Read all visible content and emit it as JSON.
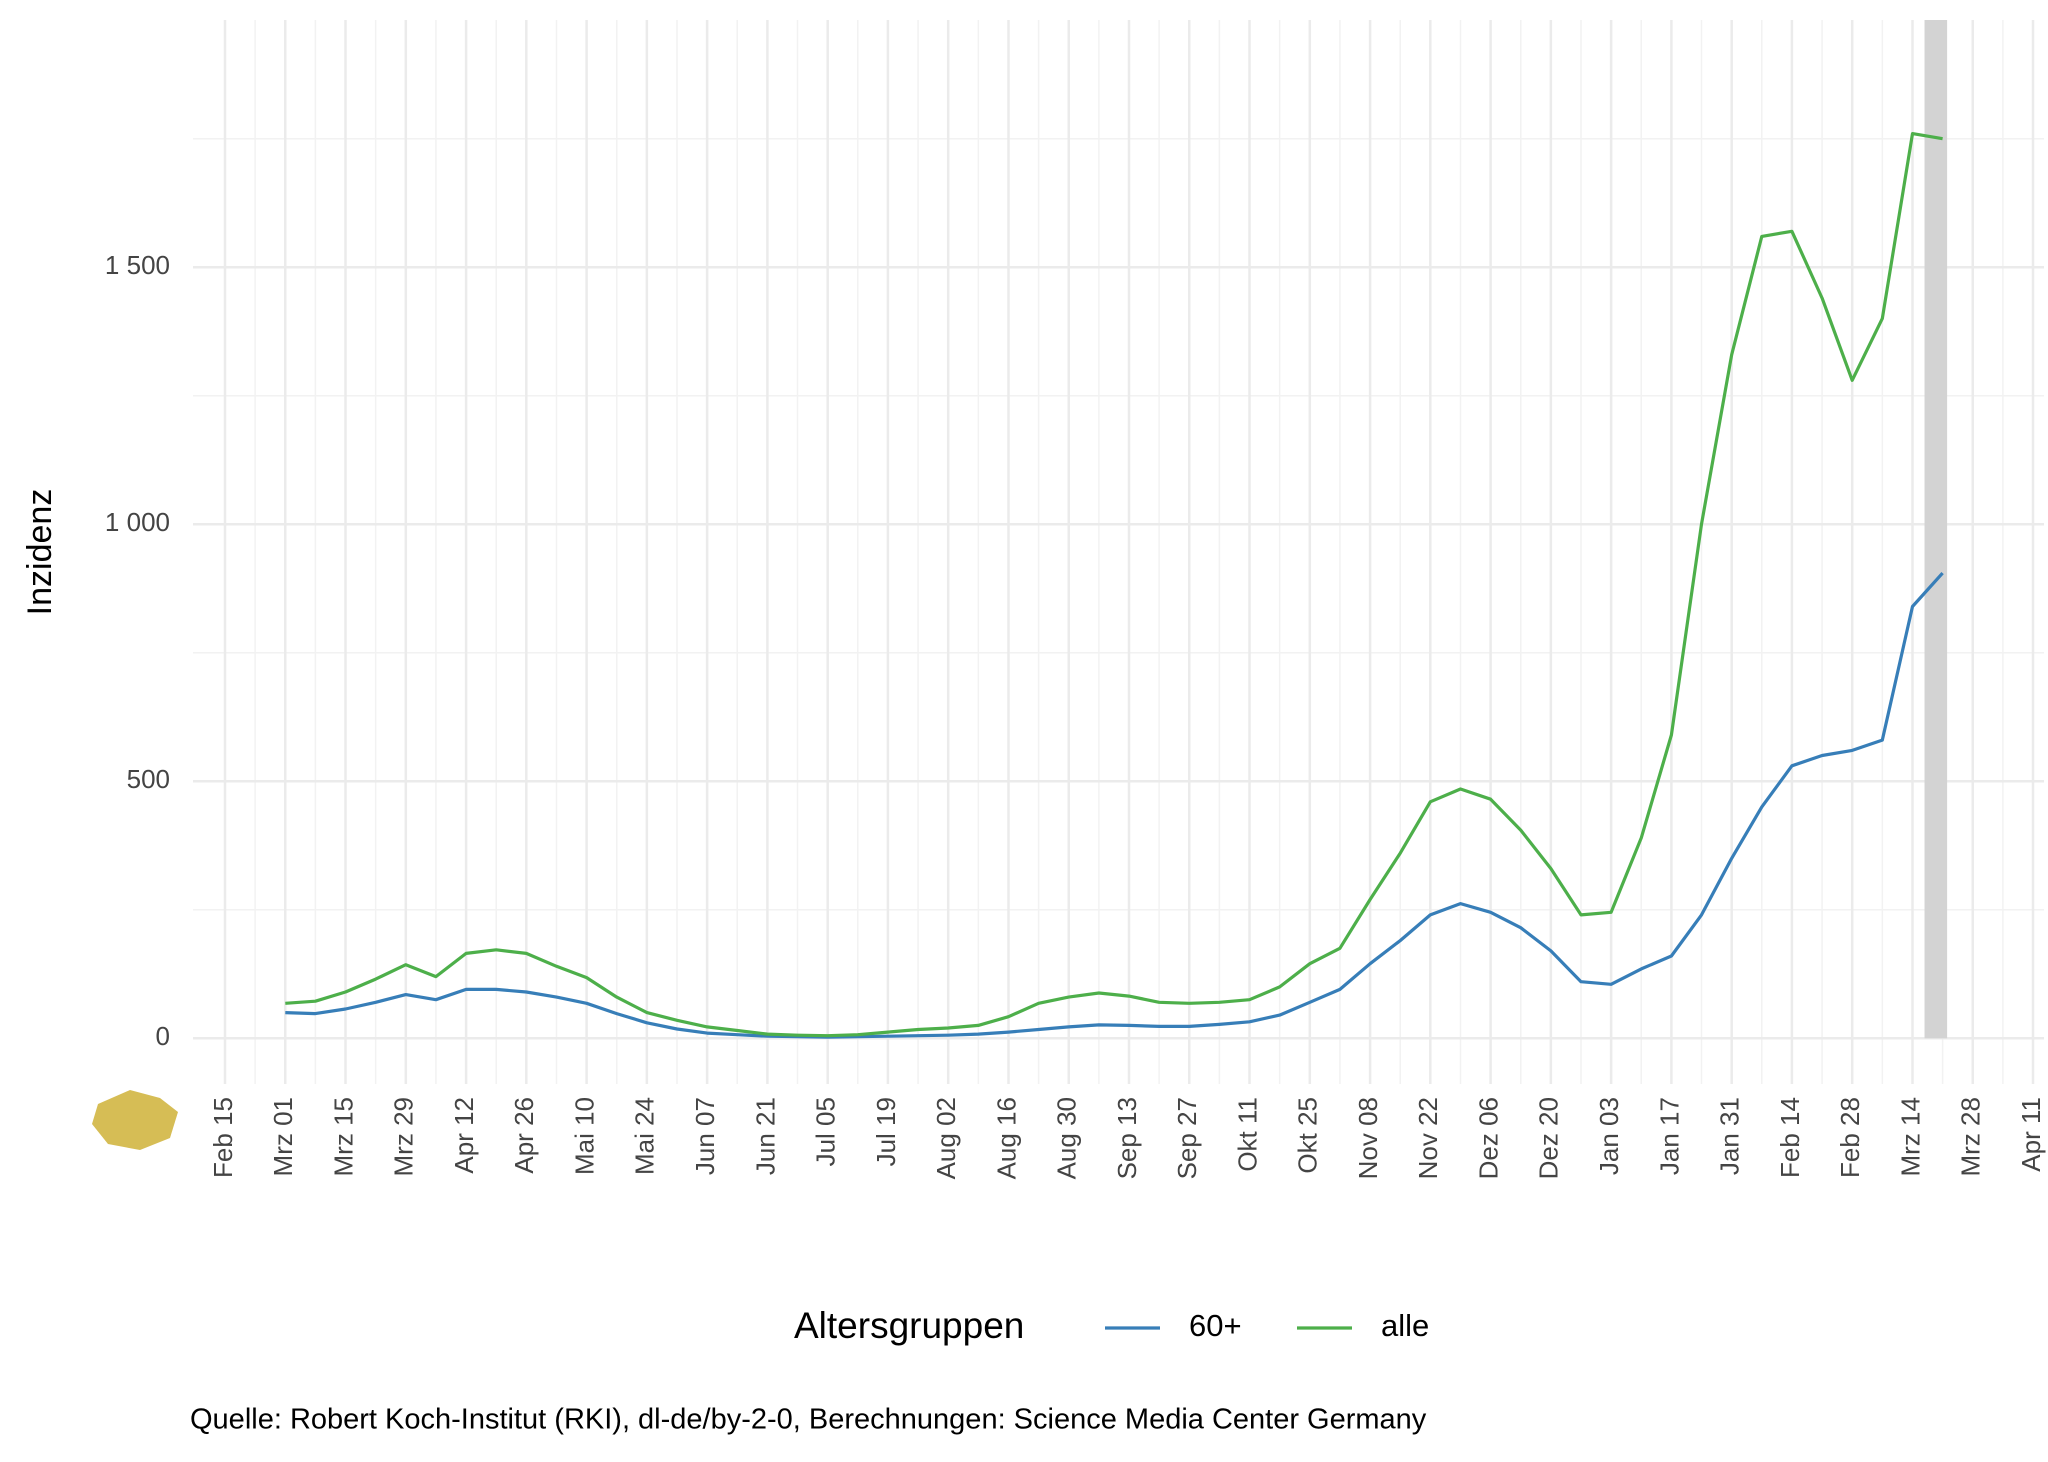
{
  "chart_data": {
    "type": "line",
    "x": [
      "Feb 15",
      null,
      "Mrz 01",
      null,
      "Mrz 15",
      null,
      "Mrz 29",
      null,
      "Apr 12",
      null,
      "Apr 26",
      null,
      "Mai 10",
      null,
      "Mai 24",
      null,
      "Jun 07",
      null,
      "Jun 21",
      null,
      "Jul 05",
      null,
      "Jul 19",
      null,
      "Aug 02",
      null,
      "Aug 16",
      null,
      "Aug 30",
      null,
      "Sep 13",
      null,
      "Sep 27",
      null,
      "Okt 11",
      null,
      "Okt 25",
      null,
      "Nov 08",
      null,
      "Nov 22",
      null,
      "Dez 06",
      null,
      "Dez 20",
      null,
      "Jan 03",
      null,
      "Jan 17",
      null,
      "Jan 31",
      null,
      "Feb 14",
      null,
      "Feb 28",
      null,
      "Mrz 14",
      null,
      "Mrz 28",
      null,
      "Apr 11"
    ],
    "series": [
      {
        "name": "60+",
        "color": "#377eb8",
        "values": [
          null,
          null,
          50,
          48,
          57,
          70,
          85,
          75,
          95,
          95,
          90,
          80,
          68,
          48,
          30,
          18,
          10,
          7,
          4,
          3,
          2,
          3,
          4,
          5,
          6,
          8,
          12,
          17,
          22,
          26,
          25,
          23,
          23,
          27,
          32,
          45,
          70,
          95,
          145,
          190,
          240,
          262,
          245,
          215,
          170,
          110,
          105,
          135,
          160,
          240,
          350,
          450,
          530,
          550,
          560,
          580,
          840,
          905,
          null,
          null,
          null
        ]
      },
      {
        "name": "alle",
        "color": "#4daf4a",
        "values": [
          null,
          null,
          68,
          72,
          90,
          115,
          143,
          120,
          165,
          172,
          165,
          140,
          118,
          80,
          50,
          35,
          22,
          15,
          8,
          6,
          5,
          7,
          12,
          17,
          20,
          25,
          42,
          68,
          80,
          88,
          82,
          70,
          68,
          70,
          75,
          100,
          145,
          175,
          270,
          360,
          460,
          485,
          465,
          405,
          330,
          240,
          245,
          390,
          590,
          1000,
          1330,
          1560,
          1570,
          1440,
          1280,
          1400,
          1760,
          1750,
          null,
          null,
          null
        ]
      }
    ],
    "ylim": [
      -89,
      1981
    ],
    "yticks": [
      0,
      500,
      {
        "value": 1000,
        "label": "1 000"
      },
      {
        "value": 1500,
        "label": "1 500"
      }
    ],
    "y_minor_ticks": [
      250,
      750,
      1250,
      1750
    ],
    "grid": true,
    "y_label": "Inzidenz",
    "legend_title": "Altersgruppen",
    "legend_position": "bottom",
    "caption": "Quelle: Robert Koch-Institut (RKI), dl-de/by-2-0, Berechnungen: Science Media Center Germany"
  }
}
